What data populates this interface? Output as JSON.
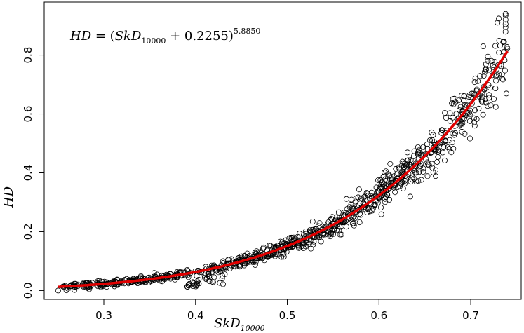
{
  "chart_data": {
    "type": "scatter",
    "title": "",
    "annotation": {
      "lhs": "HD",
      "equals": " = (",
      "var": "SkD",
      "var_sub": "10000",
      "plus": " + 0.2255)",
      "exponent": "5.8850"
    },
    "xlabel": {
      "main": "SkD",
      "sub": "10000"
    },
    "ylabel": "HD",
    "xlim": [
      0.235,
      0.755
    ],
    "ylim": [
      -0.03,
      0.98
    ],
    "xticks": [
      "0.3",
      "0.4",
      "0.5",
      "0.6",
      "0.7"
    ],
    "yticks": [
      "0.0",
      "0.2",
      "0.4",
      "0.6",
      "0.8"
    ],
    "grid": false,
    "series": [
      {
        "kind": "points",
        "marker": "open-circle",
        "color": "#000000",
        "x_range": [
          0.25,
          0.74
        ],
        "n_points": 1000
      },
      {
        "kind": "fitted-curve",
        "color": "#e00000",
        "formula": "y = (x + 0.2255)^5.8850",
        "x_range": [
          0.25,
          0.74
        ]
      }
    ]
  }
}
